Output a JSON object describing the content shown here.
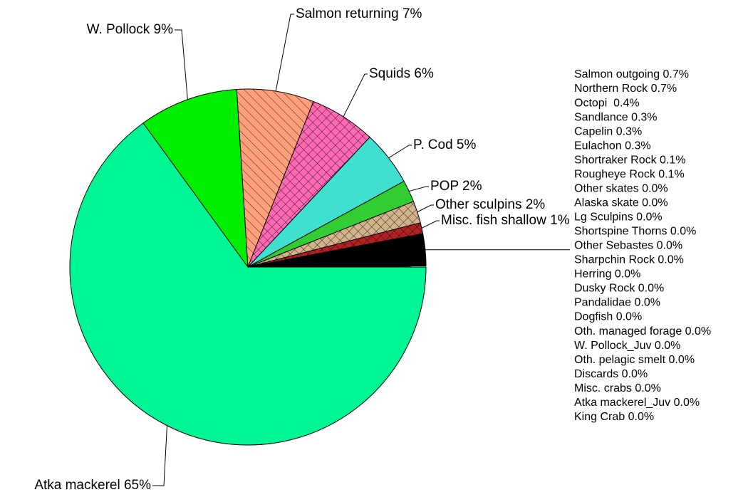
{
  "chart_data": {
    "type": "pie",
    "values": [
      65,
      9,
      7,
      6,
      5,
      2,
      2,
      1,
      0.7,
      0.7,
      0.4,
      0.3,
      0.3,
      0.3,
      0.1,
      0.1,
      0.0,
      0.0,
      0.0,
      0.0,
      0.0,
      0.0,
      0.0,
      0.0,
      0.0,
      0.0,
      0.0,
      0.0,
      0.0,
      0.0,
      0.0,
      0.0,
      0.0
    ],
    "value_labels": [
      "Atka mackerel 65%",
      "W. Pollock 9%",
      "Salmon returning 7%",
      "Squids 6%",
      "P. Cod 5%",
      "POP 2%",
      "Other sculpins 2%",
      "Misc. fish shallow 1%",
      "Salmon outgoing 0.7%",
      "Northern Rock 0.7%",
      "Octopi  0.4%",
      "Sandlance 0.3%",
      "Capelin 0.3%",
      "Eulachon 0.3%",
      "Shortraker Rock 0.1%",
      "Rougheye Rock 0.1%",
      "Other skates 0.0%",
      "Alaska skate 0.0%",
      "Lg Sculpins 0.0%",
      "Shortspine Thorns 0.0%",
      "Other Sebastes 0.0%",
      "Sharpchin Rock 0.0%",
      "Herring 0.0%",
      "Dusky Rock 0.0%",
      "Pandalidae 0.0%",
      "Dogfish 0.0%",
      "Oth. managed forage 0.0%",
      "W. Pollock_Juv 0.0%",
      "Oth. pelagic smelt 0.0%",
      "Discards 0.0%",
      "Misc. crabs 0.0%",
      "Atka mackerel_Juv 0.0%",
      "King Crab 0.0%"
    ],
    "colors": [
      "#00f593",
      "#00ee00",
      "#ffa07a",
      "#ff69b4",
      "#40e0d0",
      "#32cd32",
      "#d2b48c",
      "#b22222",
      "#000000",
      "#000000",
      "#000000",
      "#000000",
      "#000000",
      "#000000",
      "#000000",
      "#000000",
      "#000000",
      "#000000",
      "#000000",
      "#000000",
      "#000000",
      "#000000",
      "#000000",
      "#000000",
      "#000000",
      "#000000",
      "#000000",
      "#000000",
      "#000000",
      "#000000",
      "#000000",
      "#000000",
      "#000000"
    ],
    "hatches": [
      "none",
      "none",
      "diagonal",
      "cross",
      "none",
      "none",
      "cross",
      "cross",
      "none",
      "none",
      "none",
      "none",
      "none",
      "none",
      "none",
      "none",
      "none",
      "none",
      "none",
      "none",
      "none",
      "none",
      "none",
      "none",
      "none",
      "none",
      "none",
      "none",
      "none",
      "none",
      "none",
      "none",
      "none"
    ]
  }
}
